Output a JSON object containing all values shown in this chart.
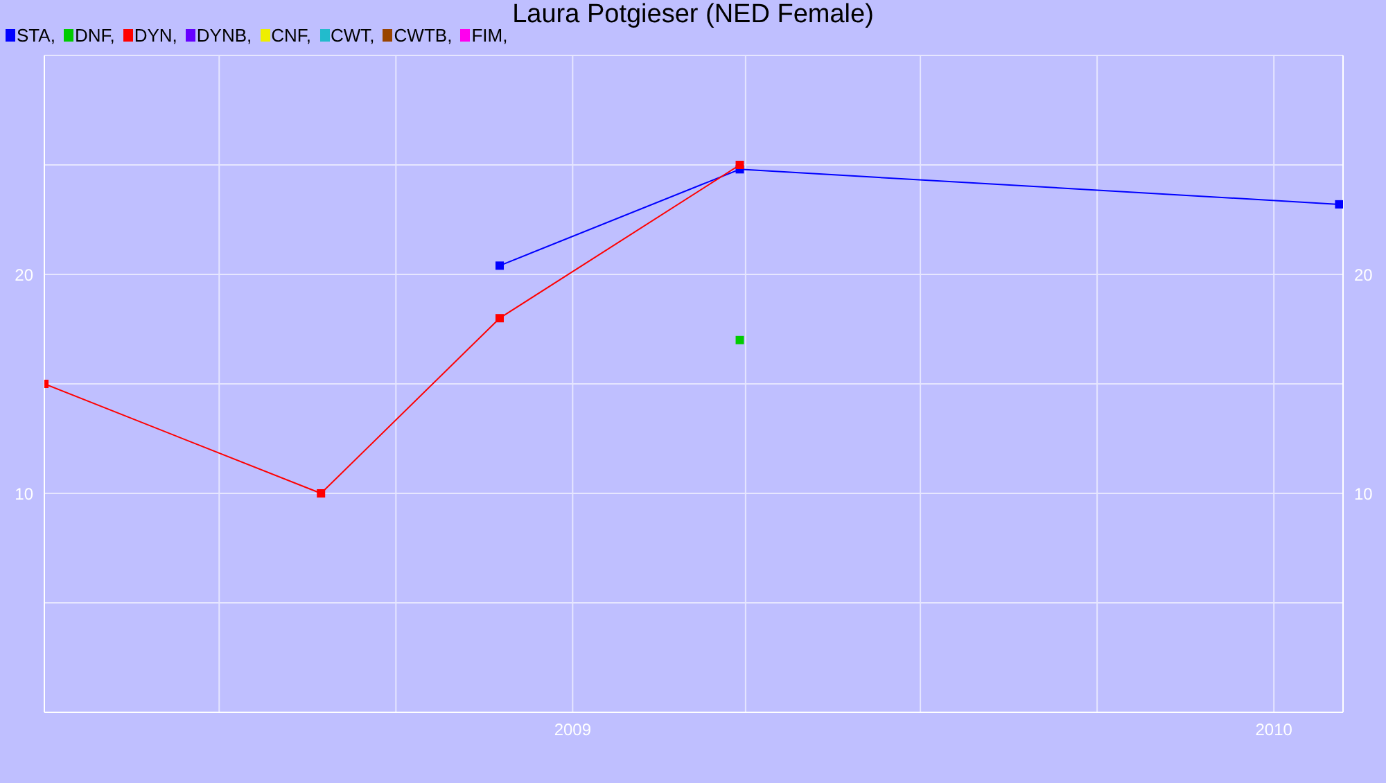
{
  "chart_data": {
    "type": "line",
    "title": "Laura Potgieser (NED Female)",
    "legend": "top left",
    "marker": "square",
    "grid": true,
    "xlim": [
      "2008-04-01",
      "2010-02-06"
    ],
    "xticks": [
      {
        "value": "2008-07-01",
        "label": null
      },
      {
        "value": "2008-10-01",
        "label": null
      },
      {
        "value": "2009-01-01",
        "label": "2009"
      },
      {
        "value": "2009-04-01",
        "label": null
      },
      {
        "value": "2009-07-01",
        "label": null
      },
      {
        "value": "2009-10-01",
        "label": null
      },
      {
        "value": "2010-01-01",
        "label": "2010"
      }
    ],
    "ylim": [
      0,
      30
    ],
    "yticks": [
      {
        "value": 5,
        "label": null
      },
      10,
      {
        "value": 15,
        "label": null
      },
      20,
      {
        "value": 25,
        "label": null
      }
    ],
    "y2lim": [
      0,
      30
    ],
    "y2ticks": [
      {
        "value": 5,
        "label": null
      },
      10,
      {
        "value": 15,
        "label": null
      },
      20,
      {
        "value": 25,
        "label": null
      }
    ],
    "series": [
      {
        "name": "STA,",
        "color": "#0000ff",
        "x": [
          "2008-11-24",
          "2009-03-29",
          "2010-02-04"
        ],
        "values": [
          20.4,
          24.8,
          23.2
        ]
      },
      {
        "name": "DNF,",
        "color": "#00cc00",
        "x": [
          "2009-03-29"
        ],
        "values": [
          17
        ]
      },
      {
        "name": "DYN,",
        "color": "#ff0000",
        "x": [
          "2008-04-01",
          "2008-08-23",
          "2008-11-24",
          "2009-03-29"
        ],
        "values": [
          15,
          10,
          18,
          25
        ]
      },
      {
        "name": "DYNB,",
        "color": "#6600ff"
      },
      {
        "name": "CNF,",
        "color": "#eeee00"
      },
      {
        "name": "CWT,",
        "color": "#22bbcc"
      },
      {
        "name": "CWTB,",
        "color": "#994400"
      },
      {
        "name": "FIM,",
        "color": "#ff00ee"
      }
    ]
  }
}
